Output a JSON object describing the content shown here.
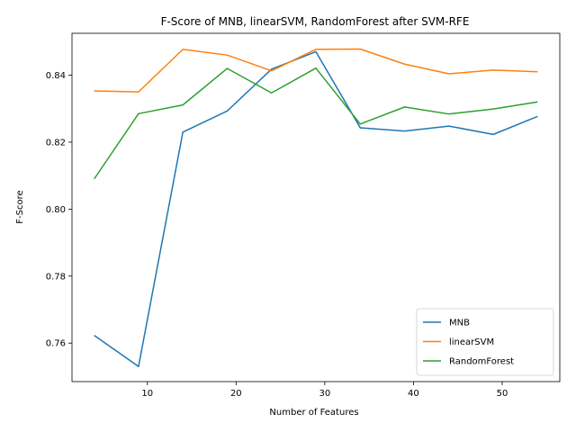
{
  "chart_data": {
    "type": "line",
    "title": "F-Score of MNB, linearSVM, RandomForest after SVM-RFE",
    "xlabel": "Number of Features",
    "ylabel": "F-Score",
    "xlim": [
      1.5,
      56.5
    ],
    "ylim": [
      0.7485,
      0.8525
    ],
    "xticks": [
      10,
      20,
      30,
      40,
      50
    ],
    "xtick_labels": [
      "10",
      "20",
      "30",
      "40",
      "50"
    ],
    "yticks": [
      0.76,
      0.78,
      0.8,
      0.82,
      0.84
    ],
    "ytick_labels": [
      "0.76",
      "0.78",
      "0.80",
      "0.82",
      "0.84"
    ],
    "grid": false,
    "legend_position": "lower-right",
    "x": [
      4,
      9,
      14,
      19,
      24,
      29,
      34,
      39,
      44,
      49,
      54
    ],
    "series": [
      {
        "name": "MNB",
        "color": "#1f77b4",
        "values": [
          0.7623,
          0.753,
          0.823,
          0.8293,
          0.8418,
          0.847,
          0.8243,
          0.8233,
          0.8248,
          0.8223,
          0.8277
        ]
      },
      {
        "name": "linearSVM",
        "color": "#ff7f0e",
        "values": [
          0.8353,
          0.835,
          0.8477,
          0.846,
          0.8413,
          0.8477,
          0.8478,
          0.8433,
          0.8404,
          0.8415,
          0.841
        ]
      },
      {
        "name": "RandomForest",
        "color": "#2ca02c",
        "values": [
          0.809,
          0.8285,
          0.8311,
          0.842,
          0.8347,
          0.8421,
          0.8254,
          0.8305,
          0.8284,
          0.8299,
          0.832
        ]
      }
    ]
  }
}
